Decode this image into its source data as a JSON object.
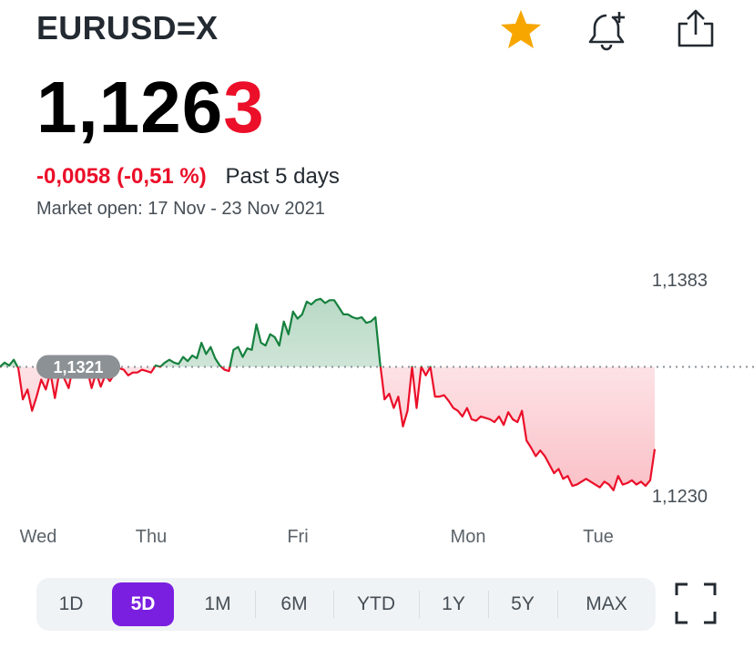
{
  "header": {
    "symbol": "EURUSD=X",
    "star_icon": "star-icon",
    "bell_icon": "bell-plus-icon",
    "share_icon": "share-icon",
    "star_color": "#f7a600"
  },
  "quote": {
    "price_main": "1,126",
    "price_last": "3",
    "change": "-0,0058 (-0,51 %)",
    "period": "Past 5 days",
    "market_status": "Market open: 17 Nov - 23 Nov 2021"
  },
  "chart_data": {
    "type": "line",
    "title": "",
    "xlabel": "",
    "ylabel": "",
    "x_labels": [
      "Wed",
      "Thu",
      "Fri",
      "Mon",
      "Tue"
    ],
    "y_labels": [
      "1,1383",
      "1,1230"
    ],
    "previous_close_label": "1,1321",
    "previous_close": 1.1321,
    "ylim": [
      1.123,
      1.1383
    ],
    "up_color": "#15813e",
    "down_color": "#eb0f29",
    "series": [
      {
        "values": [
          1.1321,
          1.1324,
          1.1322,
          1.1326,
          1.132,
          1.1298,
          1.1305,
          1.129,
          1.13,
          1.1312,
          1.1305,
          1.1317,
          1.1299,
          1.1318,
          1.1313,
          1.1306,
          1.1322,
          1.1318,
          1.1314,
          1.132,
          1.1306,
          1.1317,
          1.1307,
          1.1315,
          1.1311,
          1.1316,
          1.132,
          1.1319,
          1.1315,
          1.1317,
          1.1317,
          1.1319,
          1.1318,
          1.1317,
          1.1322,
          1.1321,
          1.1324,
          1.1326,
          1.1324,
          1.1323,
          1.1328,
          1.1325,
          1.1329,
          1.1327,
          1.1338,
          1.133,
          1.1335,
          1.1327,
          1.1322,
          1.1319,
          1.1318,
          1.1333,
          1.1335,
          1.1328,
          1.1334,
          1.1333,
          1.1351,
          1.1338,
          1.1336,
          1.1344,
          1.1342,
          1.1336,
          1.1353,
          1.1344,
          1.136,
          1.1355,
          1.1358,
          1.1367,
          1.1365,
          1.1368,
          1.1369,
          1.1366,
          1.1368,
          1.1368,
          1.1363,
          1.1358,
          1.1358,
          1.1356,
          1.1355,
          1.1356,
          1.1352,
          1.1353,
          1.1356,
          1.1324,
          1.1298,
          1.1302,
          1.1292,
          1.13,
          1.1279,
          1.129,
          1.1321,
          1.1292,
          1.1321,
          1.1315,
          1.1321,
          1.13,
          1.13,
          1.1301,
          1.1297,
          1.1292,
          1.129,
          1.1286,
          1.1292,
          1.1284,
          1.1283,
          1.1286,
          1.1285,
          1.1284,
          1.1282,
          1.1286,
          1.128,
          1.1289,
          1.1284,
          1.1282,
          1.129,
          1.1269,
          1.1264,
          1.1258,
          1.1262,
          1.1258,
          1.1252,
          1.1246,
          1.1249,
          1.1242,
          1.1244,
          1.1237,
          1.1238,
          1.124,
          1.1242,
          1.124,
          1.1238,
          1.1236,
          1.124,
          1.1238,
          1.1234,
          1.1244,
          1.1238,
          1.1239,
          1.1241,
          1.1238,
          1.124,
          1.1237,
          1.1241,
          1.1263
        ]
      }
    ]
  },
  "range_tabs": {
    "items": [
      {
        "label": "1D"
      },
      {
        "label": "5D"
      },
      {
        "label": "1M"
      },
      {
        "label": "6M"
      },
      {
        "label": "YTD"
      },
      {
        "label": "1Y"
      },
      {
        "label": "5Y"
      },
      {
        "label": "MAX"
      }
    ],
    "active": "5D",
    "fullscreen_icon": "fullscreen-icon",
    "accent_color": "#7a1fe0"
  }
}
